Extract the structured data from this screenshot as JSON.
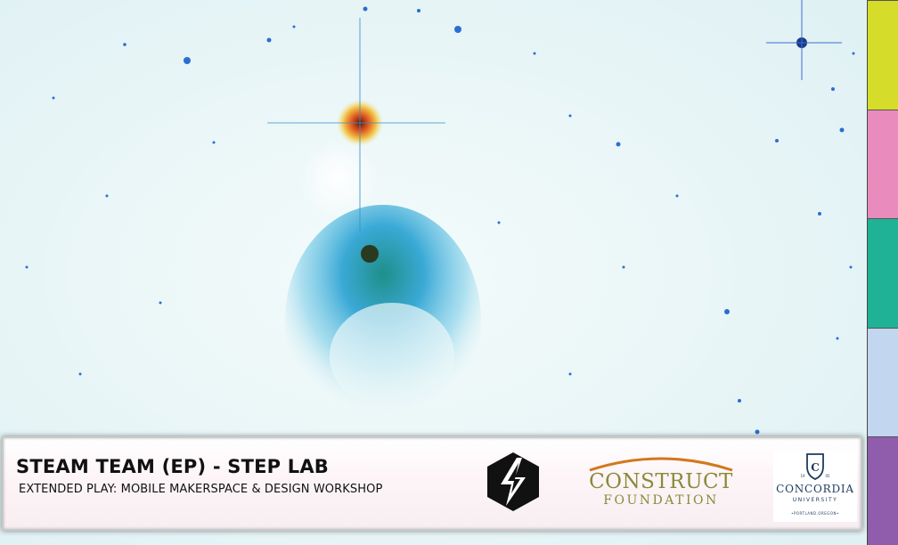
{
  "banner": {
    "title": "STEAM TEAM (EP) - STEP LAB",
    "subtitle": "EXTENDED PLAY: MOBILE MAKERSPACE & DESIGN WORKSHOP"
  },
  "sponsors": {
    "construct_line1": "CONSTRUCT",
    "construct_line2": "FOUNDATION",
    "concordia_name": "CONCORDIA",
    "concordia_university": "UNIVERSITY",
    "concordia_city": "•PORTLAND,OREGON•",
    "concordia_year_left": "19",
    "concordia_year_right": "05",
    "concordia_crest_letter": "C"
  },
  "side_tabs": [
    {
      "name": "tab-yellow",
      "color": "#d6dc2a"
    },
    {
      "name": "tab-pink",
      "color": "#e98bbd"
    },
    {
      "name": "tab-teal",
      "color": "#1fb296"
    },
    {
      "name": "tab-lightblue",
      "color": "#c2d6ef"
    },
    {
      "name": "tab-purple",
      "color": "#8f5dac"
    }
  ]
}
